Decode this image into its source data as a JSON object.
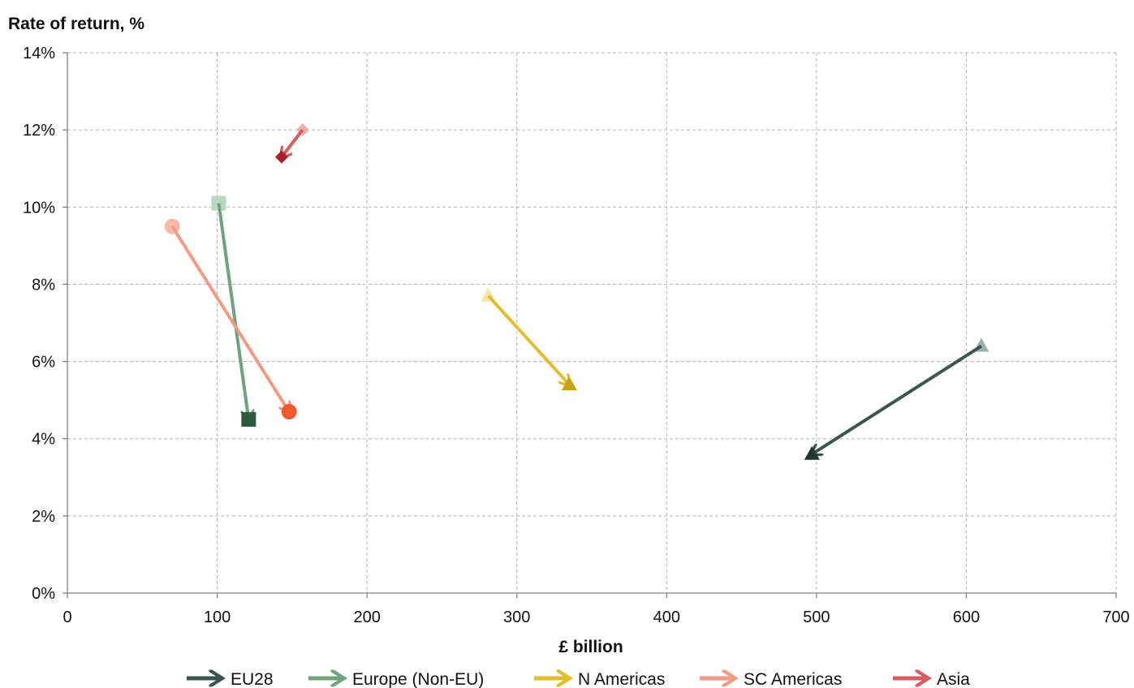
{
  "chart_data": {
    "type": "scatter",
    "ylabel": "Rate of return, %",
    "xlabel": "£ billion",
    "xlim": [
      0,
      700
    ],
    "ylim": [
      0,
      14
    ],
    "x_ticks": [
      "0",
      "100",
      "200",
      "300",
      "400",
      "500",
      "600",
      "700"
    ],
    "y_ticks": [
      "0%",
      "2%",
      "4%",
      "6%",
      "8%",
      "10%",
      "12%",
      "14%"
    ],
    "grid": true,
    "legend_position": "bottom",
    "series": [
      {
        "name": "EU28",
        "marker": "triangle",
        "color": "#3d5550",
        "start_color": "#9bb0ad",
        "end_color": "#223530",
        "start": {
          "x": 610,
          "y": 6.4
        },
        "end": {
          "x": 497,
          "y": 3.6
        }
      },
      {
        "name": "Europe (Non-EU)",
        "marker": "square",
        "color": "#6fa37c",
        "start_color": "#b9d6bf",
        "end_color": "#2e5a3c",
        "start": {
          "x": 101,
          "y": 10.1
        },
        "end": {
          "x": 121,
          "y": 4.5
        }
      },
      {
        "name": "N Americas",
        "marker": "triangle",
        "color": "#e0be2c",
        "start_color": "#f5e6a8",
        "end_color": "#c9a21a",
        "start": {
          "x": 281,
          "y": 7.7
        },
        "end": {
          "x": 335,
          "y": 5.4
        }
      },
      {
        "name": "SC Americas",
        "marker": "circle",
        "color": "#f29a86",
        "start_color": "#f8b8a8",
        "end_color": "#f05a2c",
        "start": {
          "x": 70,
          "y": 9.5
        },
        "end": {
          "x": 148,
          "y": 4.7
        }
      },
      {
        "name": "Asia",
        "marker": "diamond",
        "color": "#d35d62",
        "start_color": "#f0aab0",
        "end_color": "#a82028",
        "start": {
          "x": 157,
          "y": 12.0
        },
        "end": {
          "x": 143,
          "y": 11.3
        }
      }
    ]
  }
}
